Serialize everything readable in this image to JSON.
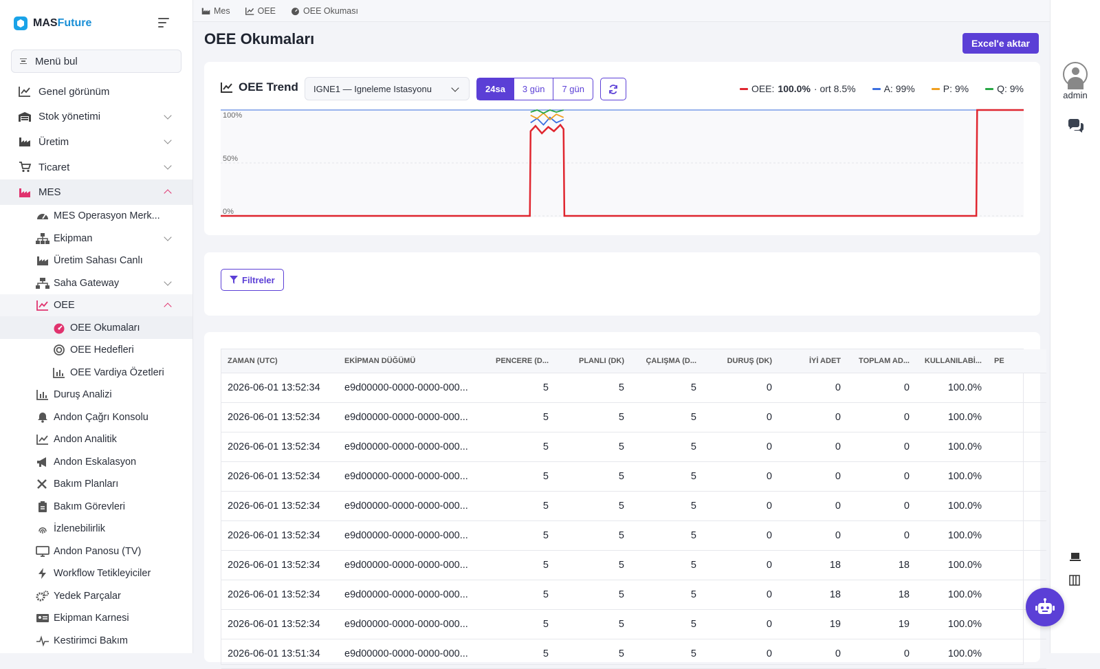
{
  "brand": {
    "part1": "MAS",
    "part2": "Future"
  },
  "sidebar": {
    "search_label": "Menü bul",
    "items": [
      {
        "label": "Genel görünüm"
      },
      {
        "label": "Stok yönetimi"
      },
      {
        "label": "Üretim"
      },
      {
        "label": "Ticaret"
      },
      {
        "label": "MES"
      }
    ],
    "mes_sub": [
      {
        "label": "MES Operasyon Merk..."
      },
      {
        "label": "Ekipman"
      },
      {
        "label": "Üretim Sahası Canlı"
      },
      {
        "label": "Saha Gateway"
      },
      {
        "label": "OEE"
      }
    ],
    "oee_sub": [
      {
        "label": "OEE Okumaları"
      },
      {
        "label": "OEE Hedefleri"
      },
      {
        "label": "OEE Vardiya Özetleri"
      }
    ],
    "mes_more": [
      {
        "label": "Duruş Analizi"
      },
      {
        "label": "Andon Çağrı Konsolu"
      },
      {
        "label": "Andon Analitik"
      },
      {
        "label": "Andon Eskalasyon"
      },
      {
        "label": "Bakım Planları"
      },
      {
        "label": "Bakım Görevleri"
      },
      {
        "label": "İzlenebilirlik"
      },
      {
        "label": "Andon Panosu (TV)"
      },
      {
        "label": "Workflow Tetikleyiciler"
      },
      {
        "label": "Yedek Parçalar"
      },
      {
        "label": "Ekipman Karnesi"
      },
      {
        "label": "Kestirimci Bakım"
      }
    ]
  },
  "breadcrumb": [
    "Mes",
    "OEE",
    "OEE Okuması"
  ],
  "page": {
    "title": "OEE Okumaları",
    "export_label": "Excel'e aktar"
  },
  "trend": {
    "title": "OEE Trend",
    "equipment": "IGNE1 — Igneleme Istasyonu",
    "ranges": [
      "24sa",
      "3 gün",
      "7 gün"
    ],
    "active_range": "24sa",
    "legend": {
      "oee_label": "OEE:",
      "oee_value": "100.0%",
      "oee_avg": "· ort 8.5%",
      "a": "A: 99%",
      "p": "P: 9%",
      "q": "Q: 9%"
    },
    "colors": {
      "oee": "#e0262f",
      "a": "#3b6fe0",
      "p": "#f0a020",
      "q": "#28a745"
    }
  },
  "filters": {
    "label": "Filtreler"
  },
  "table": {
    "headers": [
      "ZAMAN (UTC)",
      "EKİPMAN DÜĞÜMÜ",
      "PENCERE (D...",
      "PLANLI (DK)",
      "ÇALIŞMA (D...",
      "DURUŞ (DK)",
      "İYİ ADET",
      "TOPLAM AD...",
      "KULLANILABİ...",
      "PE"
    ],
    "rows": [
      [
        "2026-06-01 13:52:34",
        "e9d00000-0000-0000-000...",
        "5",
        "5",
        "5",
        "0",
        "0",
        "0",
        "100.0%",
        ""
      ],
      [
        "2026-06-01 13:52:34",
        "e9d00000-0000-0000-000...",
        "5",
        "5",
        "5",
        "0",
        "0",
        "0",
        "100.0%",
        ""
      ],
      [
        "2026-06-01 13:52:34",
        "e9d00000-0000-0000-000...",
        "5",
        "5",
        "5",
        "0",
        "0",
        "0",
        "100.0%",
        ""
      ],
      [
        "2026-06-01 13:52:34",
        "e9d00000-0000-0000-000...",
        "5",
        "5",
        "5",
        "0",
        "0",
        "0",
        "100.0%",
        ""
      ],
      [
        "2026-06-01 13:52:34",
        "e9d00000-0000-0000-000...",
        "5",
        "5",
        "5",
        "0",
        "0",
        "0",
        "100.0%",
        ""
      ],
      [
        "2026-06-01 13:52:34",
        "e9d00000-0000-0000-000...",
        "5",
        "5",
        "5",
        "0",
        "0",
        "0",
        "100.0%",
        ""
      ],
      [
        "2026-06-01 13:52:34",
        "e9d00000-0000-0000-000...",
        "5",
        "5",
        "5",
        "0",
        "18",
        "18",
        "100.0%",
        ""
      ],
      [
        "2026-06-01 13:52:34",
        "e9d00000-0000-0000-000...",
        "5",
        "5",
        "5",
        "0",
        "18",
        "18",
        "100.0%",
        ""
      ],
      [
        "2026-06-01 13:52:34",
        "e9d00000-0000-0000-000...",
        "5",
        "5",
        "5",
        "0",
        "19",
        "19",
        "100.0%",
        ""
      ],
      [
        "2026-06-01 13:51:34",
        "e9d00000-0000-0000-000...",
        "5",
        "5",
        "5",
        "0",
        "0",
        "0",
        "100.0%",
        ""
      ]
    ]
  },
  "rail": {
    "user": "admin"
  },
  "chart_data": {
    "type": "line",
    "title": "OEE Trend",
    "ylim": [
      0,
      100
    ],
    "y_ticks": [
      "100%",
      "50%",
      "0%"
    ],
    "x_range": [
      0,
      100
    ],
    "series": [
      {
        "name": "OEE",
        "color": "#e0262f",
        "points": [
          [
            0,
            0
          ],
          [
            38.5,
            0
          ],
          [
            38.6,
            80
          ],
          [
            39.2,
            85
          ],
          [
            40,
            78
          ],
          [
            40.8,
            84
          ],
          [
            41.5,
            80
          ],
          [
            42.3,
            86
          ],
          [
            42.7,
            82
          ],
          [
            42.8,
            0
          ],
          [
            94.1,
            0
          ],
          [
            94.2,
            100
          ],
          [
            100,
            100
          ]
        ]
      },
      {
        "name": "A",
        "color": "#3b6fe0",
        "points": [
          [
            38.6,
            88
          ],
          [
            39.4,
            92
          ],
          [
            40.2,
            86
          ],
          [
            41,
            93
          ],
          [
            41.8,
            88
          ],
          [
            42.7,
            91
          ]
        ]
      },
      {
        "name": "P",
        "color": "#f0a020",
        "points": [
          [
            38.6,
            95
          ],
          [
            39.4,
            92
          ],
          [
            40.2,
            97
          ],
          [
            41,
            91
          ],
          [
            41.8,
            96
          ],
          [
            42.7,
            93
          ]
        ]
      },
      {
        "name": "Q",
        "color": "#28a745",
        "points": [
          [
            38.6,
            98
          ],
          [
            39.4,
            100
          ],
          [
            40.2,
            97
          ],
          [
            41,
            100
          ],
          [
            41.8,
            98
          ],
          [
            42.7,
            100
          ]
        ]
      }
    ]
  }
}
